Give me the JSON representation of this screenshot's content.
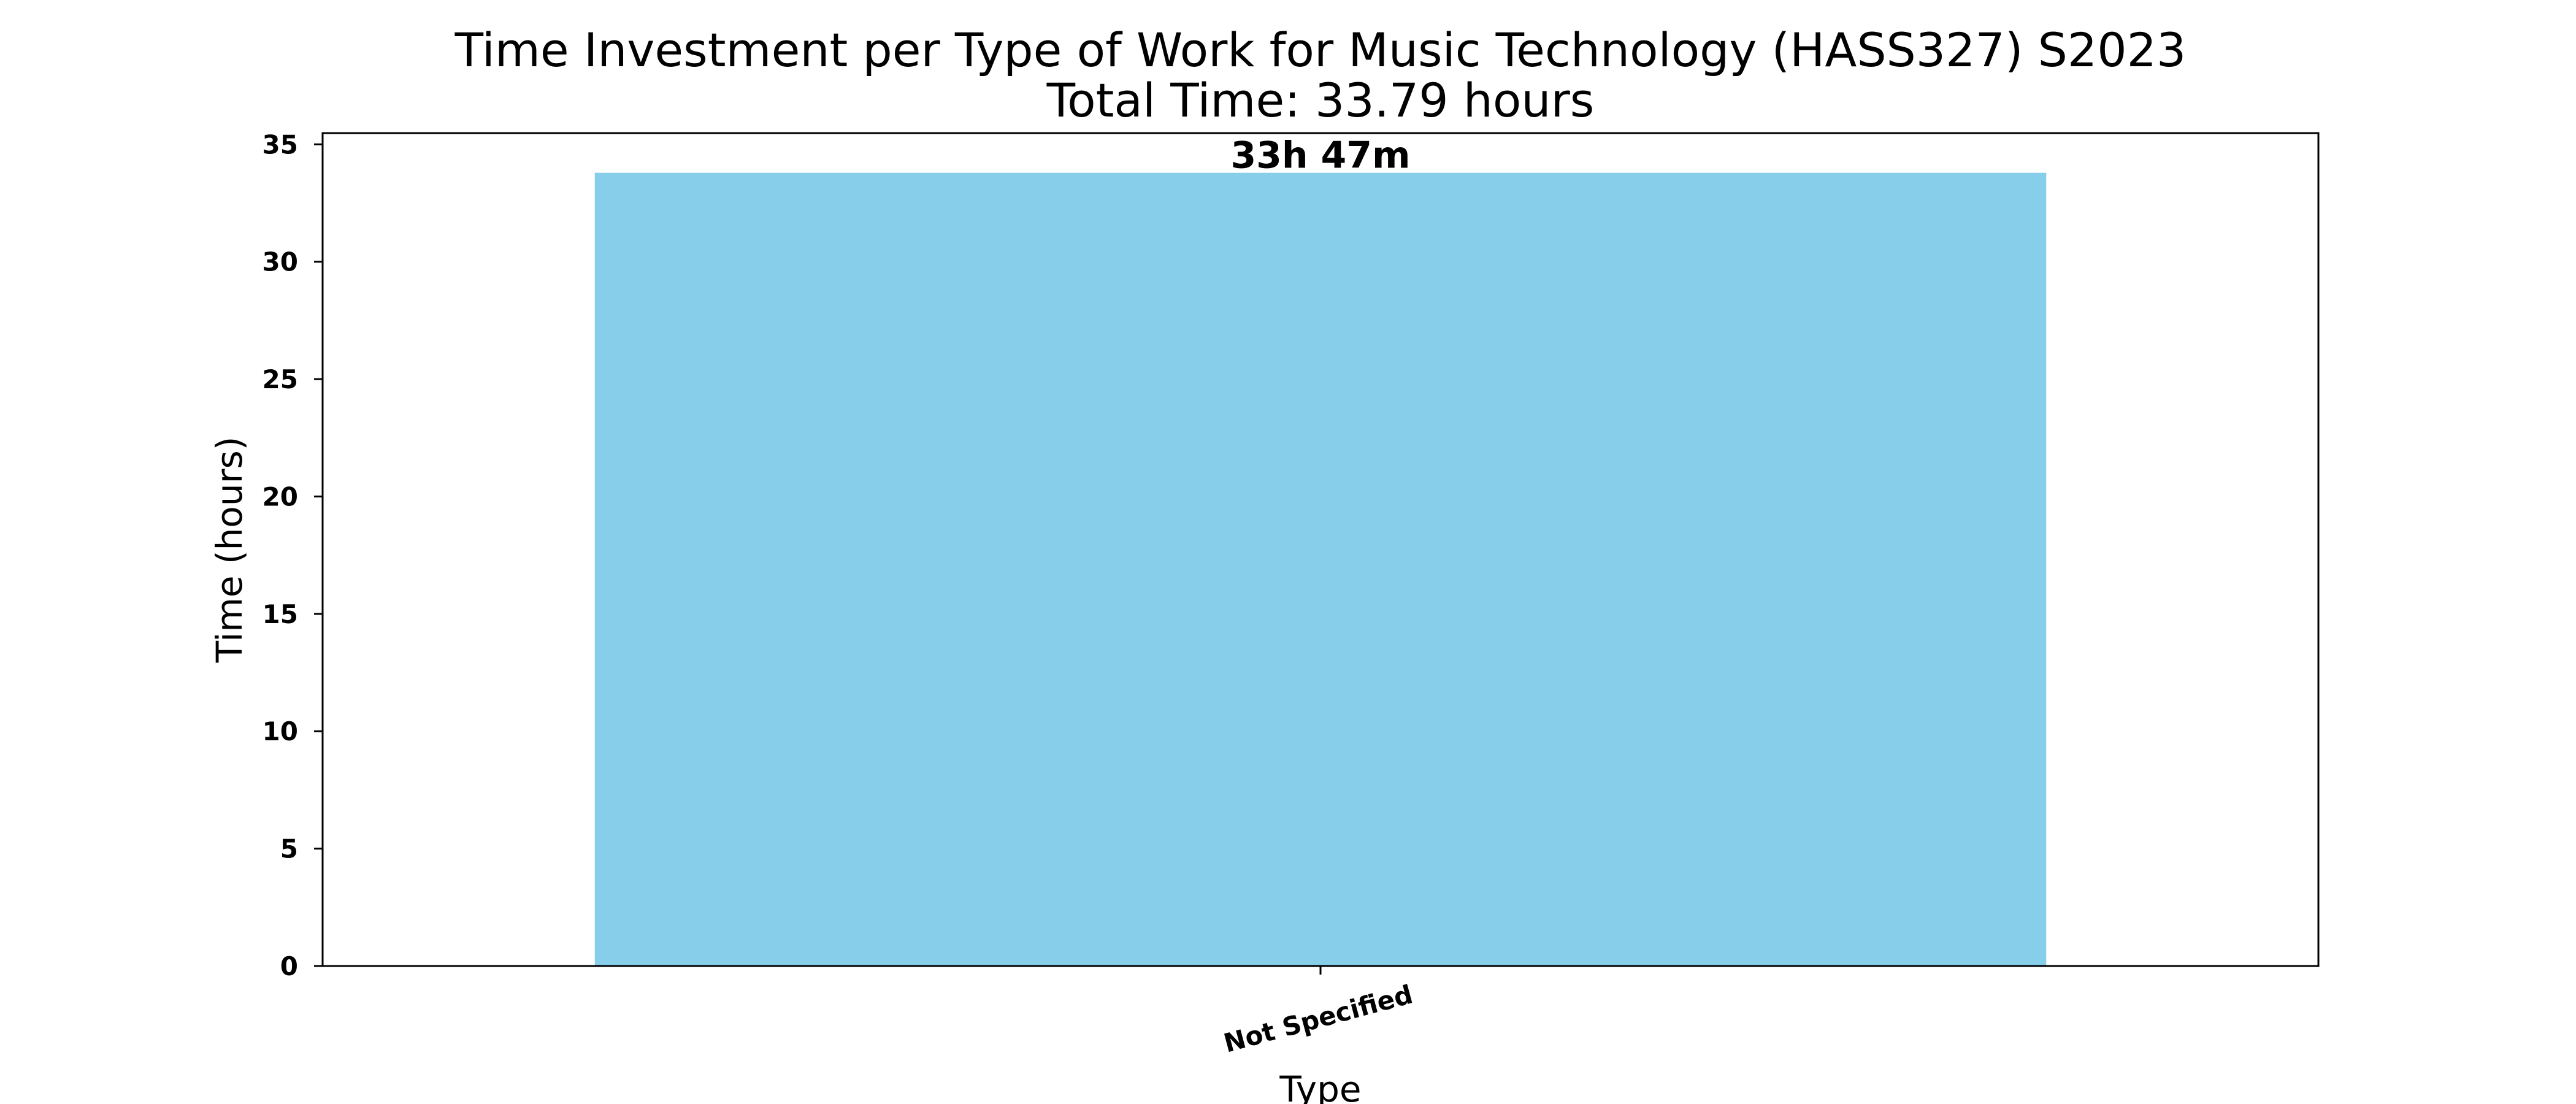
{
  "chart_data": {
    "type": "bar",
    "title": "Time Investment per Type of Work for Music Technology (HASS327) S2023",
    "subtitle": "Total Time: 33.79 hours",
    "xlabel": "Type",
    "ylabel": "Time (hours)",
    "categories": [
      "Not Specified"
    ],
    "values": [
      33.79
    ],
    "data_labels": [
      "33h 47m"
    ],
    "ylim": [
      0,
      35.48
    ],
    "yticks": [
      0,
      5,
      10,
      15,
      20,
      25,
      30,
      35
    ],
    "grid": false,
    "legend": "none",
    "bar_color": "#87CEEB",
    "x_tick_rotation": -15
  }
}
